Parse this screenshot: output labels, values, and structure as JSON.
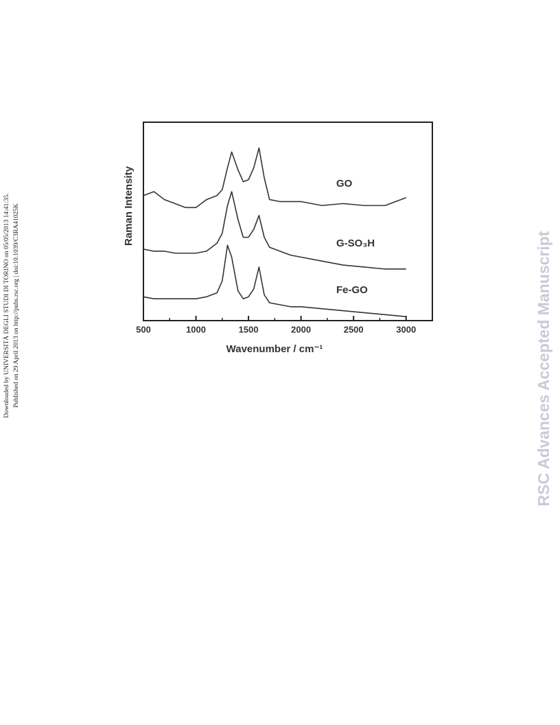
{
  "sidebar": {
    "line1": "Downloaded by UNIVERSITÀ DEGLI STUDI DI TORINO on 05/05/2013 14:41:35.",
    "line2": "Published on 29 April 2013 on http://pubs.rsc.org | doi:10.1039/C3RA41025K"
  },
  "watermark": "RSC Advances Accepted Manuscript",
  "chart_data": {
    "type": "line",
    "xlabel": "Wavenumber / cm⁻¹",
    "ylabel": "Raman Intensity",
    "x": [
      500,
      600,
      700,
      800,
      900,
      1000,
      1100,
      1200,
      1250,
      1300,
      1340,
      1400,
      1450,
      1500,
      1550,
      1600,
      1650,
      1700,
      1800,
      1900,
      2000,
      2200,
      2400,
      2600,
      2800,
      3000
    ],
    "series": [
      {
        "name": "GO",
        "color": "#333333",
        "values": [
          63,
          65,
          61,
          59,
          57,
          57,
          61,
          63,
          66,
          77,
          85,
          76,
          70,
          71,
          77,
          87,
          72,
          61,
          60,
          60,
          60,
          58,
          59,
          58,
          58,
          62
        ]
      },
      {
        "name": "G-SO₃H",
        "color": "#333333",
        "values": [
          36,
          35,
          35,
          34,
          34,
          34,
          35,
          39,
          44,
          58,
          65,
          51,
          42,
          42,
          46,
          53,
          42,
          37,
          35,
          33,
          32,
          30,
          28,
          27,
          26,
          26
        ]
      },
      {
        "name": "Fe-GO",
        "color": "#333333",
        "values": [
          12,
          11,
          11,
          11,
          11,
          11,
          12,
          14,
          20,
          38,
          32,
          15,
          11,
          12,
          16,
          27,
          13,
          9,
          8,
          7,
          7,
          6,
          5,
          4,
          3,
          2
        ]
      }
    ],
    "xlim": [
      500,
      3250
    ],
    "xticks": [
      500,
      1000,
      1500,
      2000,
      2500,
      3000
    ],
    "xminorticks": [
      750,
      1250,
      1750,
      2250,
      2750,
      3250
    ],
    "ylim": [
      0,
      100
    ]
  }
}
